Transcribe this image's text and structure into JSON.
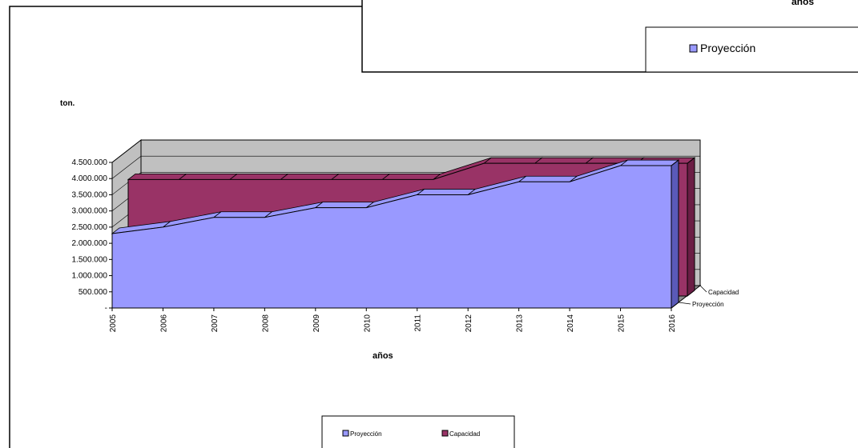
{
  "colors": {
    "proyeccion": "#9999ff",
    "proyeccion_dark": "#5a5ab8",
    "capacidad": "#993366",
    "capacidad_dark": "#6b1e45",
    "wall": "#c0c0c0",
    "floor": "#8c8c8c"
  },
  "top_box": {
    "title_fragment": "años",
    "legend_label": "Proyección"
  },
  "legend": {
    "items": [
      {
        "label": "Proyección",
        "swatch": "proyeccion"
      },
      {
        "label": "Capacidad",
        "swatch": "capacidad"
      }
    ]
  },
  "chart_data": {
    "type": "area",
    "view": "3d",
    "xlabel": "años",
    "ylabel": "ton.",
    "ylim": [
      0,
      4500000
    ],
    "y_ticks": [
      "-",
      "500.000",
      "1.000.000",
      "1.500.000",
      "2.000.000",
      "2.500.000",
      "3.000.000",
      "3.500.000",
      "4.000.000",
      "4.500.000"
    ],
    "categories": [
      "2005",
      "2006",
      "2007",
      "2008",
      "2009",
      "2010",
      "2011",
      "2012",
      "2013",
      "2014",
      "2015",
      "2016"
    ],
    "depth_labels": [
      "Capacidad",
      "Proyección"
    ],
    "series": [
      {
        "name": "Proyección",
        "color_key": "proyeccion",
        "values": [
          2300000,
          2500000,
          2800000,
          2800000,
          3100000,
          3100000,
          3500000,
          3500000,
          3900000,
          3900000,
          4400000,
          4400000
        ]
      },
      {
        "name": "Capacidad",
        "color_key": "capacidad",
        "values": [
          3600000,
          3600000,
          3600000,
          3600000,
          3600000,
          3600000,
          3600000,
          4100000,
          4100000,
          4100000,
          4100000,
          4100000
        ]
      }
    ],
    "legend_position": "bottom"
  }
}
